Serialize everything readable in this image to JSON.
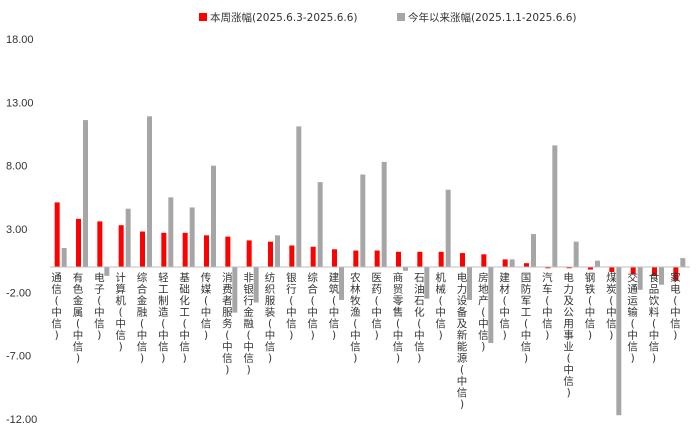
{
  "chart_data": {
    "type": "bar",
    "ylim": [
      -12,
      18
    ],
    "yticks": [
      "18.00",
      "13.00",
      "8.00",
      "3.00",
      "-2.00",
      "-7.00",
      "-12.00"
    ],
    "ytick_values": [
      18,
      13,
      8,
      3,
      -2,
      -7,
      -12
    ],
    "colors": {
      "weekly": "#ff0000",
      "ytd": "#a6a6a6",
      "axis": "#bfbfbf"
    },
    "categories": [
      "通信(中信)",
      "有色金属(中信)",
      "电子(中信)",
      "计算机(中信)",
      "综合金融(中信)",
      "轻工制造(中信)",
      "基础化工(中信)",
      "传媒(中信)",
      "消费者服务(中信)",
      "非银行金融(中信)",
      "纺织服装(中信)",
      "银行(中信)",
      "综合(中信)",
      "建筑(中信)",
      "农林牧渔(中信)",
      "医药(中信)",
      "商贸零售(中信)",
      "石油石化(中信)",
      "机械(中信)",
      "电力设备及新能源(中信)",
      "房地产(中信)",
      "建材(中信)",
      "国防军工(中信)",
      "汽车(中信)",
      "电力及公用事业(中信)",
      "钢铁(中信)",
      "煤炭(中信)",
      "交通运输(中信)",
      "食品饮料(中信)",
      "家电(中信)"
    ],
    "series": [
      {
        "name": "本周涨幅(2025.6.3-2025.6.6)",
        "values": [
          5.1,
          3.8,
          3.6,
          3.3,
          2.8,
          2.7,
          2.7,
          2.5,
          2.4,
          2.1,
          2.0,
          1.7,
          1.6,
          1.4,
          1.3,
          1.3,
          1.2,
          1.2,
          1.2,
          1.1,
          1.0,
          0.6,
          0.3,
          -0.1,
          -0.1,
          -0.2,
          -0.4,
          -0.6,
          -0.7,
          -1.1
        ]
      },
      {
        "name": "今年以来涨幅(2025.1.1-2025.6.6)",
        "values": [
          1.5,
          11.6,
          -0.7,
          4.6,
          11.9,
          5.5,
          4.7,
          8.0,
          -3.6,
          -2.8,
          2.5,
          11.1,
          6.7,
          -2.6,
          7.3,
          8.3,
          -0.3,
          -2.5,
          6.1,
          -2.6,
          -6.0,
          0.6,
          2.6,
          9.6,
          2.0,
          0.5,
          -11.7,
          -1.8,
          -1.4,
          0.7
        ]
      }
    ]
  }
}
